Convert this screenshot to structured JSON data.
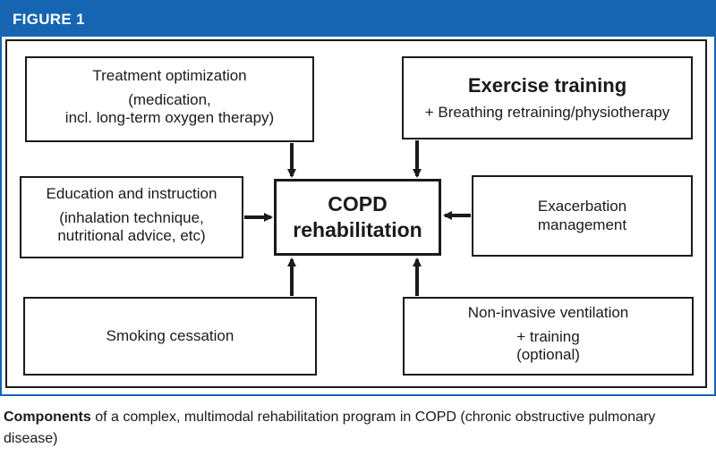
{
  "figure": {
    "label": "FIGURE 1"
  },
  "center": {
    "line1": "COPD",
    "line2": "rehabilitation"
  },
  "boxes": {
    "treatment": {
      "title": "Treatment optimization",
      "detail1": "(medication,",
      "detail2": "incl. long-term oxygen therapy)"
    },
    "exercise": {
      "title": "Exercise training",
      "detail": "+ Breathing retraining/physiotherapy"
    },
    "education": {
      "title": "Education and instruction",
      "detail1": "(inhalation technique,",
      "detail2": "nutritional advice, etc)"
    },
    "exacerbation": {
      "line1": "Exacerbation",
      "line2": "management"
    },
    "smoking": {
      "title": "Smoking cessation"
    },
    "niv": {
      "title": "Non-invasive ventilation",
      "detail1": "+ training",
      "detail2": "(optional)"
    }
  },
  "caption": {
    "strong": "Components",
    "rest": " of a complex, multimodal rehabilitation program in COPD (chronic obstructive pulmonary disease)"
  },
  "colors": {
    "header_blue": "#1565b3",
    "line": "#1a1a1a"
  }
}
